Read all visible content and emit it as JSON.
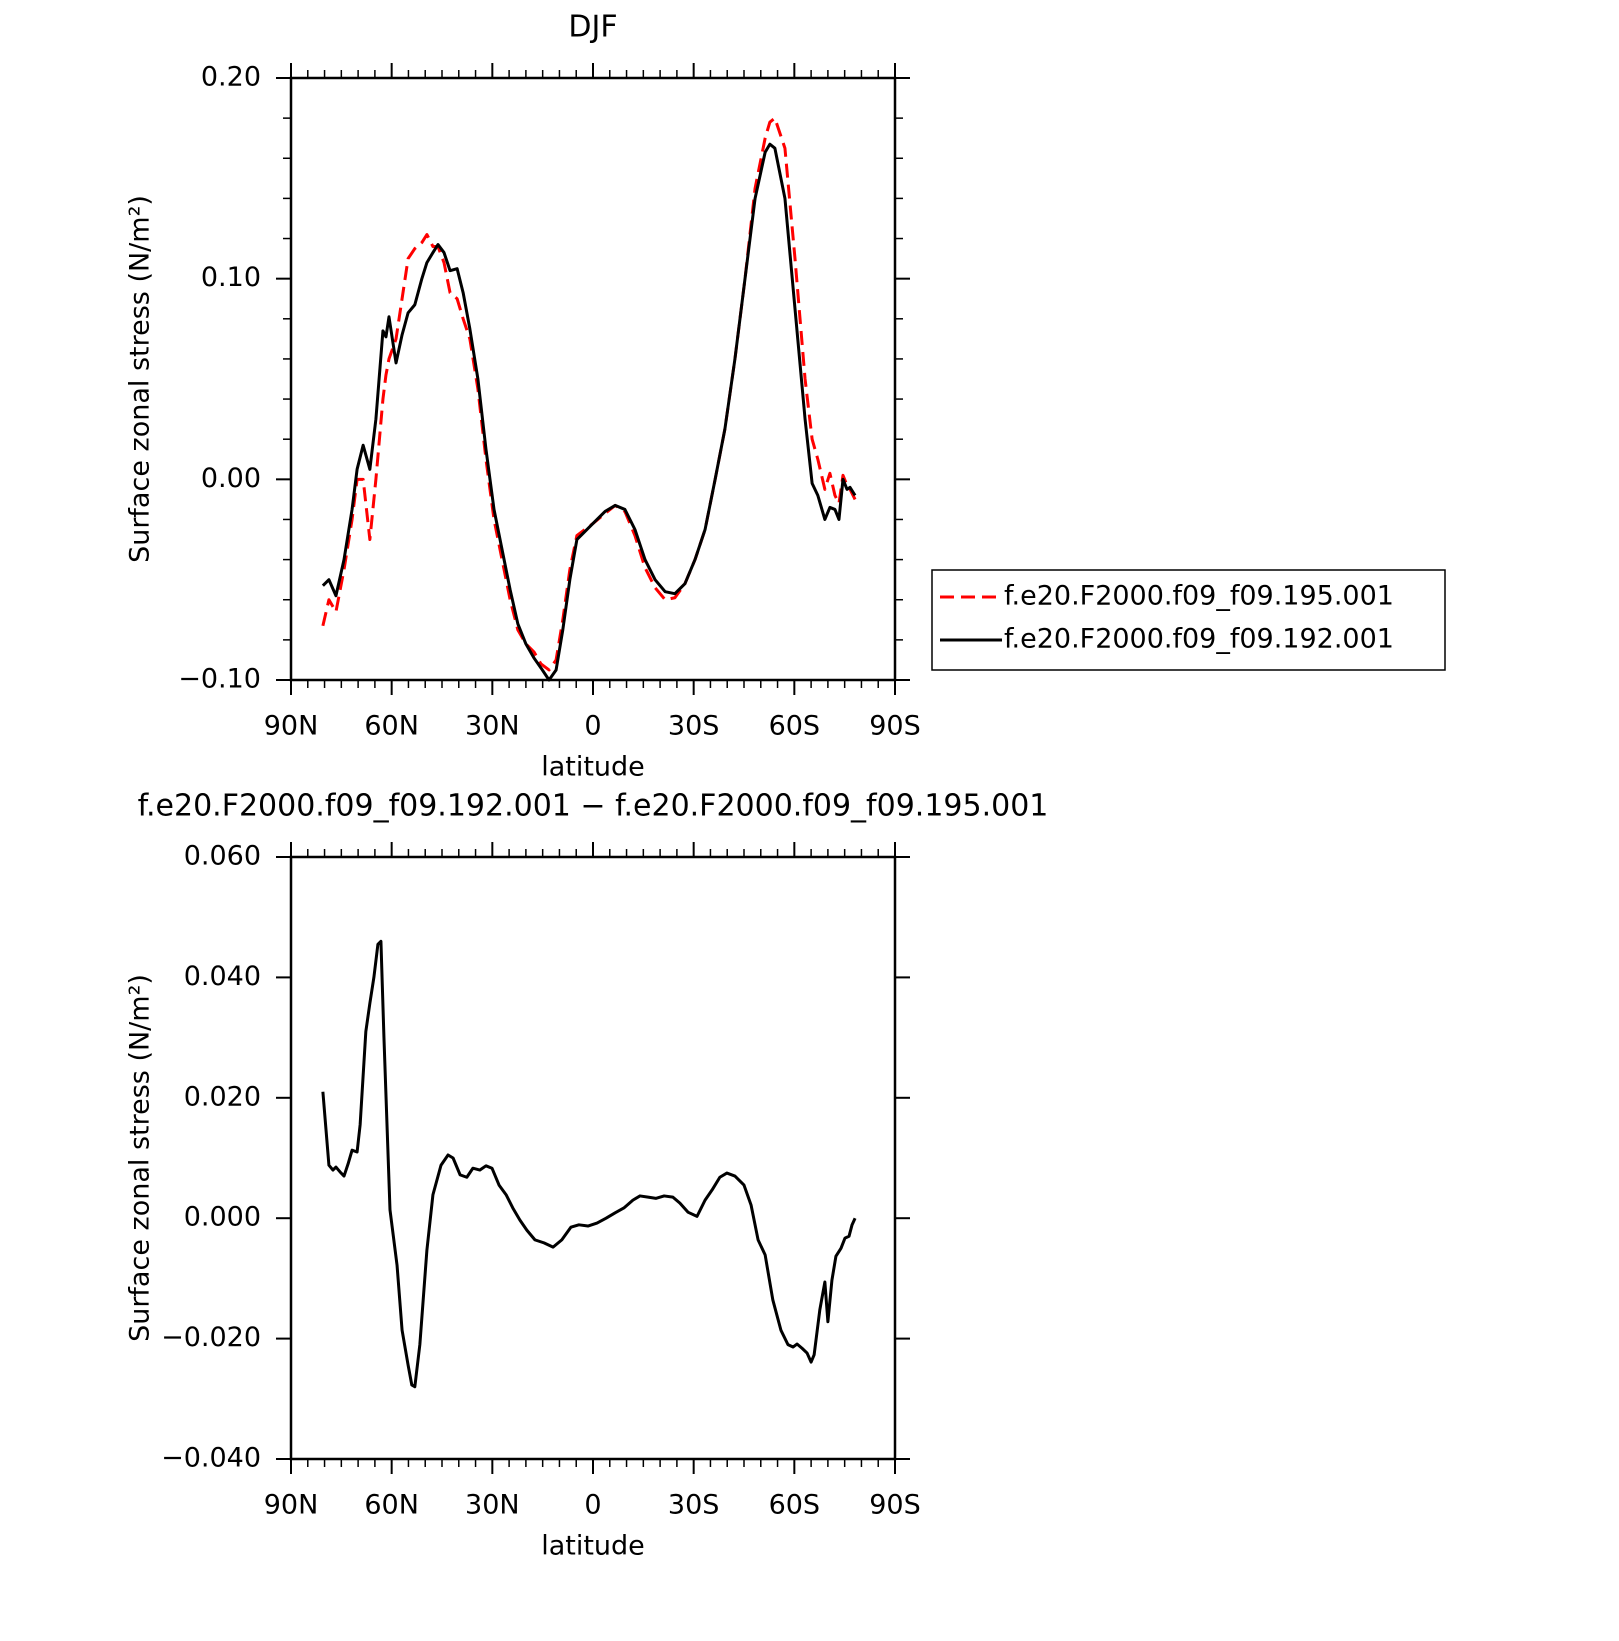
{
  "chart_data": [
    {
      "type": "line",
      "title": "DJF",
      "xlabel": "latitude",
      "ylabel": "Surface zonal stress (N/m²)",
      "xlim": [
        90,
        -90
      ],
      "xticks": [
        {
          "value": 90,
          "label": "90N"
        },
        {
          "value": 60,
          "label": "60N"
        },
        {
          "value": 30,
          "label": "30N"
        },
        0,
        {
          "value": -30,
          "label": "30S"
        },
        {
          "value": -60,
          "label": "60S"
        },
        {
          "value": -90,
          "label": "90S"
        }
      ],
      "xminorticks": [
        85,
        80,
        75,
        70,
        65,
        55,
        50,
        45,
        40,
        35,
        25,
        20,
        15,
        10,
        5,
        -5,
        -10,
        -15,
        -20,
        -25,
        -35,
        -40,
        -45,
        -50,
        -55,
        -65,
        -70,
        -75,
        -80,
        -85
      ],
      "ylim": [
        -0.1,
        0.2
      ],
      "yticks": [
        {
          "value": -0.1,
          "label": "−0.10"
        },
        {
          "value": 0,
          "label": "0.00"
        },
        {
          "value": 0.1,
          "label": "0.10"
        },
        {
          "value": 0.2,
          "label": "0.20"
        }
      ],
      "yminorticks": [
        -0.08,
        -0.06,
        -0.04,
        -0.02,
        0.02,
        0.04,
        0.06,
        0.08,
        0.12,
        0.14,
        0.16,
        0.18
      ],
      "legend": "right",
      "x": [
        80.5,
        78.7,
        76.6,
        74.2,
        71.8,
        70.3,
        68.5,
        66.5,
        64.7,
        62.6,
        61.7,
        60.8,
        58.7,
        56.9,
        55.1,
        53.1,
        51.0,
        49.5,
        47.7,
        46.2,
        44.4,
        42.6,
        40.5,
        38.7,
        36.7,
        34.3,
        31.9,
        29.5,
        27.1,
        24.7,
        22.4,
        20.0,
        17.6,
        15.5,
        13.1,
        11.0,
        9.0,
        6.9,
        4.8,
        0,
        -3.6,
        -6.6,
        -9.5,
        -12.5,
        -15.5,
        -18.5,
        -21.5,
        -24.4,
        -27.4,
        -30.4,
        -33.4,
        -36.4,
        -39.3,
        -42.3,
        -45.3,
        -48.3,
        -51.3,
        -52.7,
        -54.2,
        -57.2,
        -60.2,
        -63.2,
        -65.3,
        -67.0,
        -69.1,
        -70.6,
        -72.1,
        -73.3,
        -74.5,
        -75.7,
        -76.6,
        -78.1
      ],
      "series": [
        {
          "name": "f.e20.F2000.f09_f09.195.001",
          "color": "#ff0000",
          "dash": "dashed",
          "values": [
            -0.073,
            -0.06,
            -0.066,
            -0.045,
            -0.02,
            0.0,
            0.0,
            -0.03,
            0.0,
            0.04,
            0.052,
            0.06,
            0.07,
            0.09,
            0.11,
            0.115,
            0.118,
            0.122,
            0.116,
            0.116,
            0.108,
            0.093,
            0.09,
            0.08,
            0.07,
            0.045,
            0.01,
            -0.02,
            -0.04,
            -0.06,
            -0.075,
            -0.082,
            -0.086,
            -0.092,
            -0.095,
            -0.09,
            -0.07,
            -0.045,
            -0.028,
            -0.022,
            -0.017,
            -0.013,
            -0.016,
            -0.028,
            -0.044,
            -0.054,
            -0.06,
            -0.059,
            -0.052,
            -0.04,
            -0.025,
            0.0,
            0.025,
            0.06,
            0.1,
            0.145,
            0.17,
            0.178,
            0.18,
            0.165,
            0.11,
            0.05,
            0.02,
            0.01,
            -0.005,
            0.003,
            -0.008,
            -0.012,
            0.002,
            -0.003,
            -0.005,
            -0.01
          ]
        },
        {
          "name": "f.e20.F2000.f09_f09.192.001",
          "color": "#000000",
          "dash": "solid",
          "values": [
            -0.053,
            -0.05,
            -0.058,
            -0.04,
            -0.015,
            0.005,
            0.017,
            0.005,
            0.03,
            0.074,
            0.071,
            0.081,
            0.058,
            0.072,
            0.083,
            0.087,
            0.1,
            0.108,
            0.113,
            0.117,
            0.113,
            0.104,
            0.105,
            0.093,
            0.075,
            0.05,
            0.015,
            -0.015,
            -0.035,
            -0.055,
            -0.072,
            -0.082,
            -0.089,
            -0.094,
            -0.1,
            -0.095,
            -0.075,
            -0.05,
            -0.03,
            -0.022,
            -0.016,
            -0.013,
            -0.015,
            -0.025,
            -0.04,
            -0.05,
            -0.056,
            -0.057,
            -0.052,
            -0.04,
            -0.025,
            0.0,
            0.025,
            0.06,
            0.1,
            0.14,
            0.163,
            0.167,
            0.165,
            0.14,
            0.085,
            0.03,
            -0.002,
            -0.008,
            -0.02,
            -0.014,
            -0.015,
            -0.02,
            0.0,
            -0.005,
            -0.004,
            -0.008
          ]
        }
      ]
    },
    {
      "type": "line",
      "title": "f.e20.F2000.f09_f09.192.001 − f.e20.F2000.f09_f09.195.001",
      "xlabel": "latitude",
      "ylabel": "Surface zonal stress (N/m²)",
      "xlim": [
        90,
        -90
      ],
      "xticks": [
        {
          "value": 90,
          "label": "90N"
        },
        {
          "value": 60,
          "label": "60N"
        },
        {
          "value": 30,
          "label": "30N"
        },
        0,
        {
          "value": -30,
          "label": "30S"
        },
        {
          "value": -60,
          "label": "60S"
        },
        {
          "value": -90,
          "label": "90S"
        }
      ],
      "xminorticks": [
        85,
        80,
        75,
        70,
        65,
        55,
        50,
        45,
        40,
        35,
        25,
        20,
        15,
        10,
        5,
        -5,
        -10,
        -15,
        -20,
        -25,
        -35,
        -40,
        -45,
        -50,
        -55,
        -65,
        -70,
        -75,
        -80,
        -85
      ],
      "ylim": [
        -0.04,
        0.06
      ],
      "yticks": [
        {
          "value": -0.04,
          "label": "−0.040"
        },
        {
          "value": -0.02,
          "label": "−0.020"
        },
        {
          "value": 0,
          "label": "0.000"
        },
        {
          "value": 0.02,
          "label": "0.020"
        },
        {
          "value": 0.04,
          "label": "0.040"
        },
        {
          "value": 0.06,
          "label": "0.060"
        }
      ],
      "color": "#000000",
      "x": [
        80.5,
        78.7,
        77.5,
        76.6,
        75.4,
        74.2,
        73.0,
        71.8,
        70.3,
        69.4,
        67.7,
        66.5,
        65.3,
        64.1,
        63.2,
        62.3,
        60.5,
        58.4,
        56.9,
        55.1,
        54.0,
        53.1,
        51.6,
        49.5,
        47.7,
        45.3,
        43.2,
        41.7,
        39.6,
        37.6,
        35.8,
        33.7,
        31.9,
        30.1,
        28.0,
        25.9,
        23.9,
        21.8,
        19.7,
        17.3,
        14.6,
        11.9,
        9.3,
        6.6,
        4.2,
        1.5,
        -1.2,
        -3.9,
        -6.6,
        -9.2,
        -11.9,
        -14.0,
        -16.4,
        -18.8,
        -21.2,
        -23.8,
        -25.9,
        -28.3,
        -31.0,
        -33.4,
        -35.5,
        -37.8,
        -39.9,
        -42.3,
        -45.0,
        -47.1,
        -49.2,
        -51.3,
        -53.6,
        -56.0,
        -58.1,
        -59.6,
        -60.8,
        -62.3,
        -63.8,
        -65.0,
        -65.9,
        -67.6,
        -69.1,
        -70.0,
        -71.2,
        -72.4,
        -73.9,
        -75.1,
        -76.3,
        -77.2,
        -78.1
      ],
      "values": [
        0.021,
        0.0088,
        0.008,
        0.0085,
        0.0077,
        0.007,
        0.009,
        0.0113,
        0.011,
        0.0155,
        0.031,
        0.0357,
        0.04,
        0.0455,
        0.046,
        0.03,
        0.0014,
        -0.0078,
        -0.0186,
        -0.0244,
        -0.0277,
        -0.028,
        -0.021,
        -0.0053,
        0.0039,
        0.0088,
        0.0105,
        0.01,
        0.0072,
        0.0068,
        0.0083,
        0.008,
        0.0087,
        0.0083,
        0.0055,
        0.0039,
        0.0017,
        -0.0003,
        -0.002,
        -0.0036,
        -0.0041,
        -0.0048,
        -0.0036,
        -0.0015,
        -0.0011,
        -0.0013,
        -0.0008,
        0.0,
        0.0009,
        0.0017,
        0.003,
        0.0037,
        0.0035,
        0.0033,
        0.0037,
        0.0035,
        0.0025,
        0.001,
        0.0003,
        0.003,
        0.0047,
        0.0068,
        0.0075,
        0.007,
        0.0055,
        0.0022,
        -0.0036,
        -0.0061,
        -0.0136,
        -0.0186,
        -0.021,
        -0.0214,
        -0.0209,
        -0.0216,
        -0.0224,
        -0.0239,
        -0.0227,
        -0.0152,
        -0.0106,
        -0.0172,
        -0.0103,
        -0.0063,
        -0.005,
        -0.0033,
        -0.003,
        -0.0011,
        0.0
      ]
    }
  ]
}
